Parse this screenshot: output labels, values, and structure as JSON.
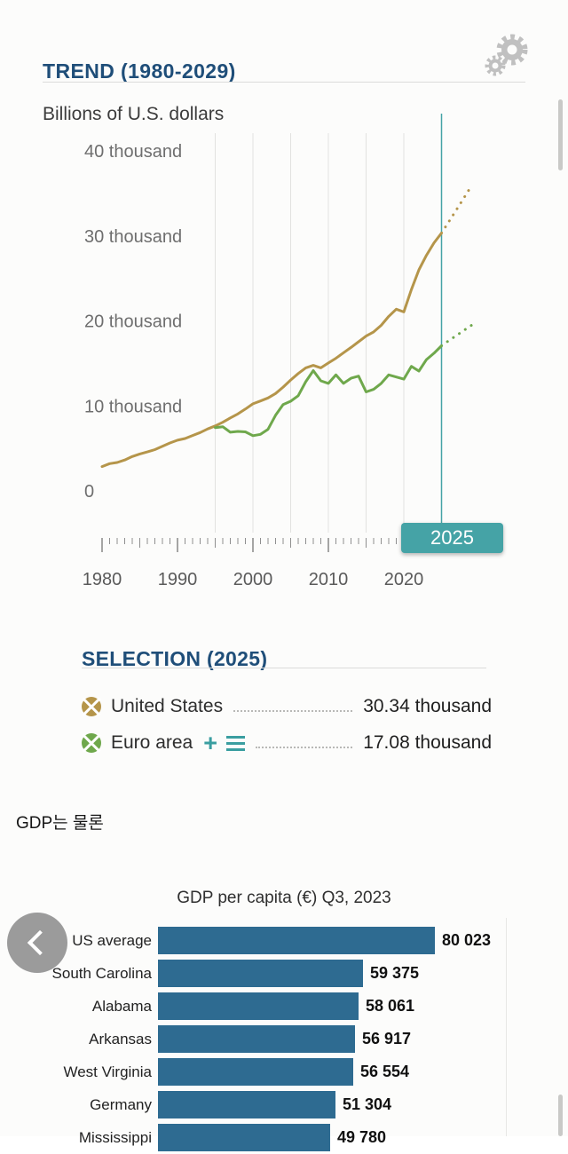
{
  "colors": {
    "accent_blue": "#1f4e79",
    "teal": "#45a3a6",
    "us_line": "#b5954a",
    "euro_line": "#6fa84c",
    "bar_blue": "#2e6b91"
  },
  "icons": {
    "settings": "double-gear",
    "prev": "chevron-left",
    "add_series": "+",
    "series_list": "hamburger"
  },
  "trend": {
    "title": "TREND (1980-2029)",
    "unit_label": "Billions of U.S. dollars",
    "selected_year_badge": "2025"
  },
  "selection": {
    "title": "SELECTION (2025)",
    "items": [
      {
        "label": "United States",
        "value": "30.34 thousand",
        "color": "#b5954a"
      },
      {
        "label": "Euro area",
        "value": "17.08 thousand",
        "color": "#6fa84c"
      }
    ],
    "icons": {
      "plus": "+"
    }
  },
  "article": {
    "text": "GDP는 물론"
  },
  "chart_data": [
    {
      "type": "line",
      "title": "TREND (1980-2029)",
      "ylabel": "Billions of U.S. dollars",
      "ylim": [
        0,
        40
      ],
      "xlim": [
        1980,
        2029
      ],
      "grid": "vertical-only",
      "selected_year": 2025,
      "selected_color": "#45a3a6",
      "gridline_years": [
        1995,
        2000,
        2005,
        2010,
        2015,
        2020
      ],
      "y_ticks": [
        {
          "value": 0,
          "label": "0"
        },
        {
          "value": 10,
          "label": "10 thousand"
        },
        {
          "value": 20,
          "label": "20 thousand"
        },
        {
          "value": 30,
          "label": "30 thousand"
        },
        {
          "value": 40,
          "label": "40 thousand"
        }
      ],
      "x_ticks": [
        {
          "value": 1980,
          "label": "1980"
        },
        {
          "value": 1990,
          "label": "1990"
        },
        {
          "value": 2000,
          "label": "2000"
        },
        {
          "value": 2010,
          "label": "2010"
        },
        {
          "value": 2020,
          "label": "2020"
        }
      ],
      "series": [
        {
          "name": "United States",
          "color": "#b5954a",
          "x_start": 1980,
          "dotted_after": 2025,
          "values": [
            2.86,
            3.21,
            3.34,
            3.63,
            4.04,
            4.34,
            4.58,
            4.86,
            5.24,
            5.64,
            5.96,
            6.16,
            6.52,
            6.86,
            7.29,
            7.64,
            8.07,
            8.58,
            9.06,
            9.63,
            10.25,
            10.58,
            10.93,
            11.46,
            12.21,
            13.04,
            13.81,
            14.47,
            14.77,
            14.48,
            15.05,
            15.6,
            16.25,
            16.88,
            17.55,
            18.21,
            18.71,
            19.48,
            20.53,
            21.38,
            21.06,
            23.68,
            26.01,
            27.72,
            29.18,
            30.34,
            31.72,
            33.11,
            34.52,
            35.94
          ]
        },
        {
          "name": "Euro area",
          "color": "#6fa84c",
          "x_start": 1995,
          "dotted_after": 2025,
          "values": [
            7.45,
            7.55,
            6.9,
            7.0,
            6.95,
            6.5,
            6.65,
            7.25,
            8.9,
            10.15,
            10.55,
            11.2,
            12.85,
            14.15,
            12.95,
            12.65,
            13.65,
            12.65,
            13.25,
            13.5,
            11.65,
            11.95,
            12.65,
            13.65,
            13.4,
            13.15,
            14.65,
            14.1,
            15.45,
            16.2,
            17.08,
            17.7,
            18.3,
            18.9,
            19.5
          ]
        }
      ]
    },
    {
      "type": "bar",
      "title": "GDP per capita (€) Q3, 2023",
      "orientation": "horizontal",
      "bar_color": "#2e6b91",
      "xlim": [
        0,
        80023
      ],
      "categories": [
        "US average",
        "South Carolina",
        "Alabama",
        "Arkansas",
        "West Virginia",
        "Germany",
        "Mississippi"
      ],
      "values": [
        80023,
        59375,
        58061,
        56917,
        56554,
        51304,
        49780
      ],
      "value_labels": [
        "80 023",
        "59 375",
        "58 061",
        "56 917",
        "56 554",
        "51 304",
        "49 780"
      ]
    }
  ]
}
